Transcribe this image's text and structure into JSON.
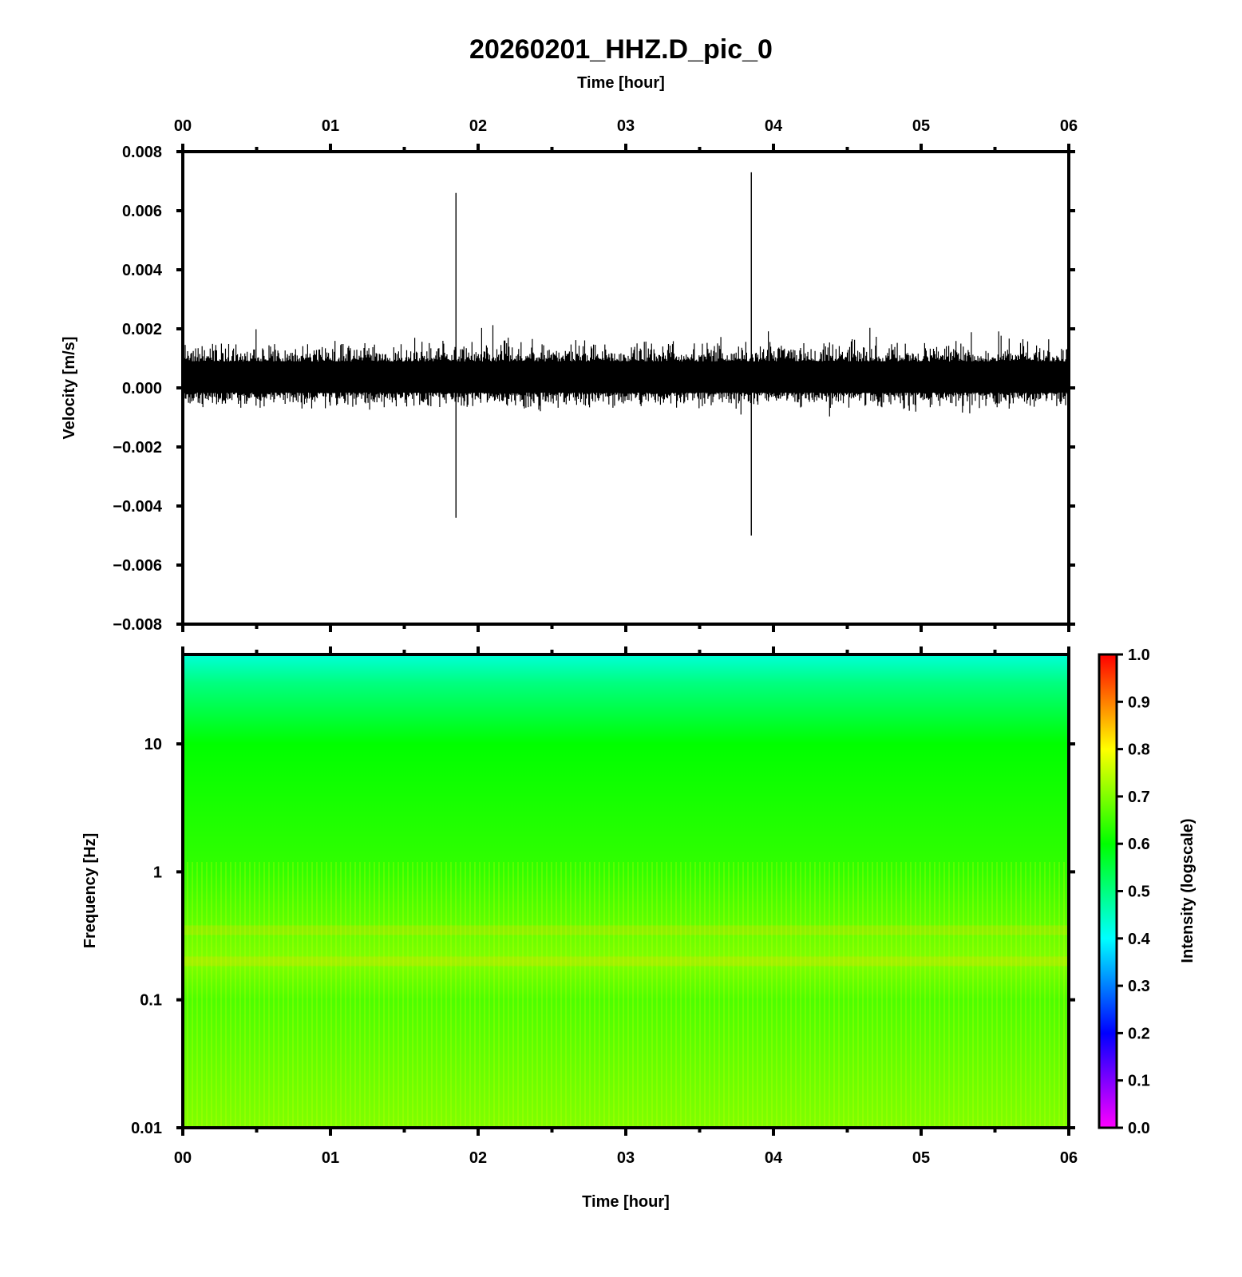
{
  "chart_data": [
    {
      "type": "line",
      "panel": "waveform",
      "title": "20260201_HHZ.D_pic_0",
      "top_xlabel": "Time [hour]",
      "xlabel": "",
      "ylabel": "Velocity [m/s]",
      "x_unit": "hour",
      "xlim": [
        0,
        6
      ],
      "ylim": [
        -0.008,
        0.008
      ],
      "x_ticks": [
        "00",
        "01",
        "02",
        "03",
        "04",
        "05",
        "06"
      ],
      "y_ticks": [
        "0.008",
        "0.006",
        "0.004",
        "0.002",
        "0.000",
        "−0.002",
        "−0.004",
        "−0.006",
        "−0.008"
      ],
      "y_tick_values": [
        0.008,
        0.006,
        0.004,
        0.002,
        0.0,
        -0.002,
        -0.004,
        -0.006,
        -0.008
      ],
      "series": [
        {
          "color": "#000000",
          "baseline": 0.0003,
          "noise_band": [
            -0.001,
            0.002
          ],
          "spikes": [
            {
              "x": 1.85,
              "ymin": -0.0044,
              "ymax": 0.0066
            },
            {
              "x": 3.85,
              "ymin": -0.005,
              "ymax": 0.0073
            }
          ]
        }
      ],
      "grid": false
    },
    {
      "type": "heatmap",
      "panel": "spectrogram",
      "xlabel": "Time [hour]",
      "ylabel": "Frequency [Hz]",
      "xlim": [
        0,
        6
      ],
      "ylim": [
        0.01,
        50
      ],
      "y_scale": "log",
      "x_ticks": [
        "00",
        "01",
        "02",
        "03",
        "04",
        "05",
        "06"
      ],
      "y_ticks": [
        "10",
        "1",
        "0.1",
        "0.01"
      ],
      "y_tick_values": [
        10,
        1,
        0.1,
        0.01
      ],
      "intensity_profile": [
        {
          "freq": 50,
          "intensity": 0.43
        },
        {
          "freq": 30,
          "intensity": 0.5
        },
        {
          "freq": 10,
          "intensity": 0.6
        },
        {
          "freq": 1,
          "intensity": 0.64
        },
        {
          "freq": 0.35,
          "intensity": 0.68
        },
        {
          "freq": 0.2,
          "intensity": 0.7
        },
        {
          "freq": 0.1,
          "intensity": 0.66
        },
        {
          "freq": 0.01,
          "intensity": 0.7
        }
      ],
      "colorbar": {
        "label": "Intensity (logscale)",
        "range": [
          0.0,
          1.0
        ],
        "ticks": [
          "1.0",
          "0.9",
          "0.8",
          "0.7",
          "0.6",
          "0.5",
          "0.4",
          "0.3",
          "0.2",
          "0.1",
          "0.0"
        ],
        "colormap": [
          "#ff00ff",
          "#0000ff",
          "#00ffff",
          "#00ff00",
          "#ffff00",
          "#ff0000"
        ]
      }
    }
  ]
}
